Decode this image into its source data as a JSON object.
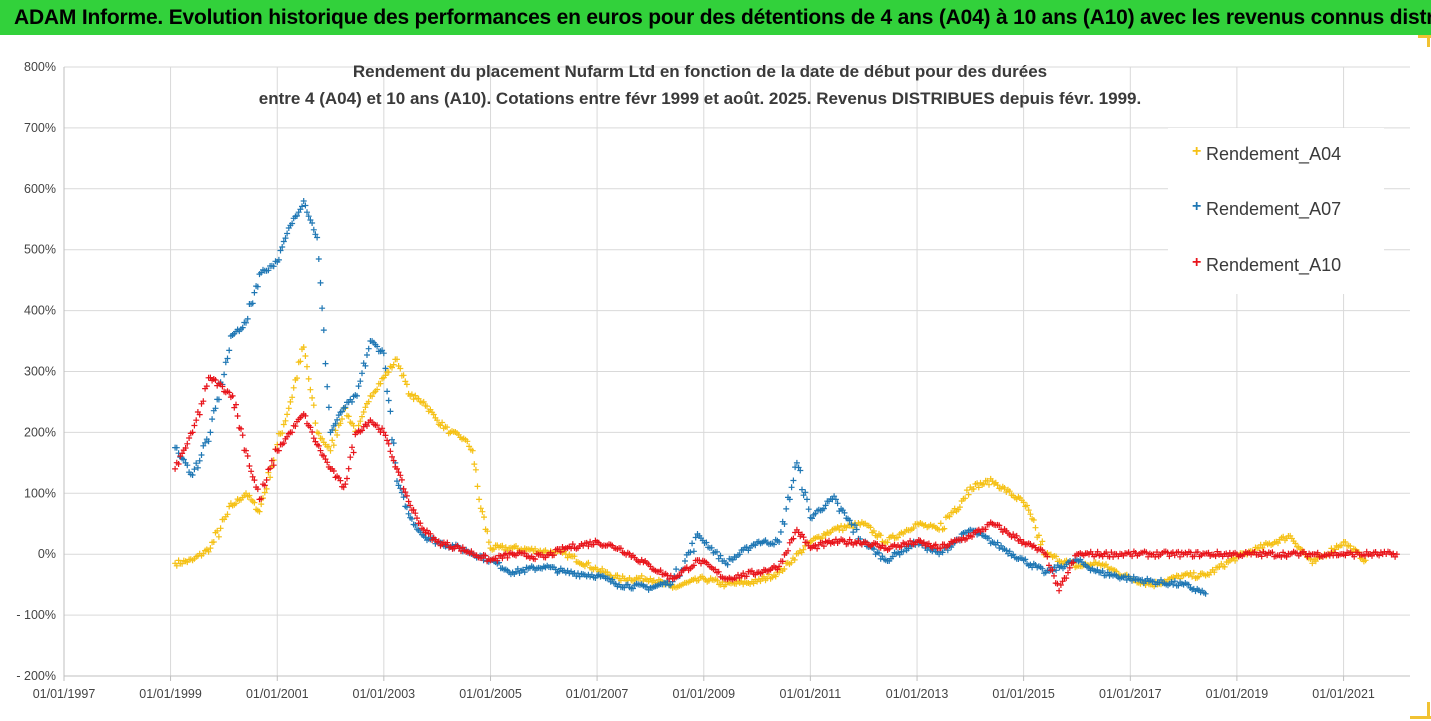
{
  "banner": {
    "text": "ADAM Informe. Evolution historique des performances en euros pour des détentions de 4 ans (A04) à 10 ans (A10) avec les revenus connus distribués"
  },
  "colors": {
    "banner": "#32d13b",
    "corner": "#f1c232",
    "grid": "#d9d9d9",
    "axis": "#bfbfbf"
  },
  "chart_data": {
    "type": "scatter",
    "title_line1": "Rendement du placement Nufarm Ltd en fonction de la date de début pour des durées",
    "title_line2": "entre 4 (A04) et 10 ans (A10). Cotations entre févr 1999 et août. 2025. Revenus DISTRIBUES depuis févr. 1999.",
    "xlabel": "",
    "ylabel": "",
    "xlim": [
      "1997-01-01",
      "2022-04-01"
    ],
    "ylim": [
      -200,
      800
    ],
    "y_ticks": [
      -200,
      -100,
      0,
      100,
      200,
      300,
      400,
      500,
      600,
      700,
      800
    ],
    "y_tick_labels": [
      "- 200%",
      "- 100%",
      "0%",
      "100%",
      "200%",
      "300%",
      "400%",
      "500%",
      "600%",
      "700%",
      "800%"
    ],
    "x_ticks": [
      "1997-01-01",
      "1999-01-01",
      "2001-01-01",
      "2003-01-01",
      "2005-01-01",
      "2007-01-01",
      "2009-01-01",
      "2011-01-01",
      "2013-01-01",
      "2015-01-01",
      "2017-01-01",
      "2019-01-01",
      "2021-01-01"
    ],
    "x_tick_labels": [
      "01/01/1997",
      "01/01/1999",
      "01/01/2001",
      "01/01/2003",
      "01/01/2005",
      "01/01/2007",
      "01/01/2009",
      "01/01/2011",
      "01/01/2013",
      "01/01/2015",
      "01/01/2017",
      "01/01/2019",
      "01/01/2021"
    ],
    "grid": true,
    "legend_position": "top-right",
    "series": [
      {
        "name": "Rendement_A04",
        "color": "#f5c116",
        "x": [
          "1999-02-01",
          "1999-06-01",
          "1999-10-01",
          "2000-03-01",
          "2000-06-01",
          "2000-09-01",
          "2001-01-01",
          "2001-04-01",
          "2001-07-01",
          "2001-10-01",
          "2002-01-01",
          "2002-04-01",
          "2002-07-01",
          "2002-10-01",
          "2003-01-01",
          "2003-04-01",
          "2003-07-01",
          "2003-10-01",
          "2004-01-01",
          "2004-04-01",
          "2004-07-01",
          "2004-09-01",
          "2004-10-15",
          "2005-01-01",
          "2005-06-01",
          "2006-01-01",
          "2006-06-01",
          "2007-01-01",
          "2007-06-01",
          "2008-01-01",
          "2008-06-01",
          "2009-01-01",
          "2009-06-01",
          "2010-01-01",
          "2010-06-01",
          "2011-01-01",
          "2011-06-01",
          "2012-01-01",
          "2012-06-01",
          "2013-01-01",
          "2013-06-01",
          "2014-01-01",
          "2014-06-01",
          "2015-01-01",
          "2015-06-01",
          "2016-01-01",
          "2016-06-01",
          "2017-01-01",
          "2017-06-01",
          "2018-01-01",
          "2018-06-01",
          "2019-01-01",
          "2019-06-01",
          "2020-01-01",
          "2020-06-01",
          "2021-01-01",
          "2021-06-01"
        ],
        "y": [
          -15,
          -10,
          10,
          80,
          100,
          70,
          180,
          250,
          340,
          200,
          170,
          240,
          200,
          260,
          290,
          320,
          260,
          250,
          220,
          200,
          190,
          170,
          90,
          10,
          10,
          5,
          0,
          -25,
          -40,
          -40,
          -55,
          -40,
          -50,
          -45,
          -30,
          20,
          40,
          50,
          20,
          50,
          40,
          110,
          120,
          85,
          0,
          -20,
          -15,
          -40,
          -50,
          -35,
          -35,
          -5,
          10,
          30,
          -15,
          20,
          -10
        ]
      },
      {
        "name": "Rendement_A07",
        "color": "#1f77b4",
        "x": [
          "1999-02-01",
          "1999-06-01",
          "1999-10-01",
          "2000-03-01",
          "2000-06-01",
          "2000-09-01",
          "2001-01-01",
          "2001-04-01",
          "2001-07-01",
          "2001-10-01",
          "2002-01-01",
          "2002-04-01",
          "2002-07-01",
          "2002-10-01",
          "2003-01-01",
          "2003-04-01",
          "2003-07-01",
          "2003-10-01",
          "2004-01-01",
          "2004-06-01",
          "2005-01-01",
          "2005-06-01",
          "2006-01-01",
          "2006-06-01",
          "2007-01-01",
          "2007-06-01",
          "2008-01-01",
          "2008-06-01",
          "2008-12-01",
          "2009-06-01",
          "2010-01-01",
          "2010-06-01",
          "2010-10-01",
          "2011-01-01",
          "2011-06-01",
          "2012-01-01",
          "2012-06-01",
          "2013-01-01",
          "2013-06-01",
          "2014-01-01",
          "2014-06-01",
          "2015-01-01",
          "2015-06-01",
          "2016-01-01",
          "2016-06-01",
          "2017-01-01",
          "2017-06-01",
          "2018-01-01",
          "2018-06-01"
        ],
        "y": [
          175,
          130,
          200,
          360,
          380,
          460,
          480,
          540,
          580,
          520,
          200,
          240,
          260,
          350,
          330,
          120,
          60,
          30,
          20,
          10,
          -10,
          -30,
          -20,
          -30,
          -35,
          -50,
          -55,
          -45,
          30,
          -15,
          20,
          20,
          150,
          60,
          90,
          20,
          -10,
          20,
          0,
          40,
          20,
          -10,
          -30,
          -10,
          -30,
          -40,
          -45,
          -50,
          -65
        ]
      },
      {
        "name": "Rendement_A10",
        "color": "#e8141b",
        "x": [
          "1999-02-01",
          "1999-06-01",
          "1999-10-01",
          "2000-03-01",
          "2000-06-01",
          "2000-09-01",
          "2001-01-01",
          "2001-04-01",
          "2001-07-01",
          "2001-10-01",
          "2002-01-01",
          "2002-04-01",
          "2002-07-01",
          "2002-10-01",
          "2003-01-01",
          "2003-04-01",
          "2003-07-01",
          "2003-10-01",
          "2004-01-01",
          "2004-06-01",
          "2005-01-01",
          "2005-06-01",
          "2006-01-01",
          "2006-06-01",
          "2007-01-01",
          "2007-06-01",
          "2008-01-01",
          "2008-06-01",
          "2008-12-01",
          "2009-06-01",
          "2010-01-01",
          "2010-06-01",
          "2010-10-01",
          "2011-01-01",
          "2011-06-01",
          "2012-01-01",
          "2012-06-01",
          "2013-01-01",
          "2013-06-01",
          "2014-01-01",
          "2014-06-01",
          "2015-01-01",
          "2015-06-01",
          "2015-09-01",
          "2016-01-01",
          "2017-01-01",
          "2018-01-01",
          "2019-01-01",
          "2020-01-01",
          "2021-01-01",
          "2022-01-01"
        ],
        "y": [
          140,
          200,
          290,
          260,
          170,
          90,
          170,
          200,
          230,
          180,
          140,
          110,
          200,
          220,
          200,
          140,
          80,
          40,
          20,
          10,
          -10,
          0,
          -5,
          10,
          20,
          10,
          -20,
          -40,
          -10,
          -40,
          -30,
          -20,
          40,
          10,
          20,
          20,
          10,
          20,
          10,
          30,
          50,
          20,
          0,
          -60,
          0,
          0,
          0,
          0,
          0,
          0,
          0
        ]
      }
    ]
  }
}
